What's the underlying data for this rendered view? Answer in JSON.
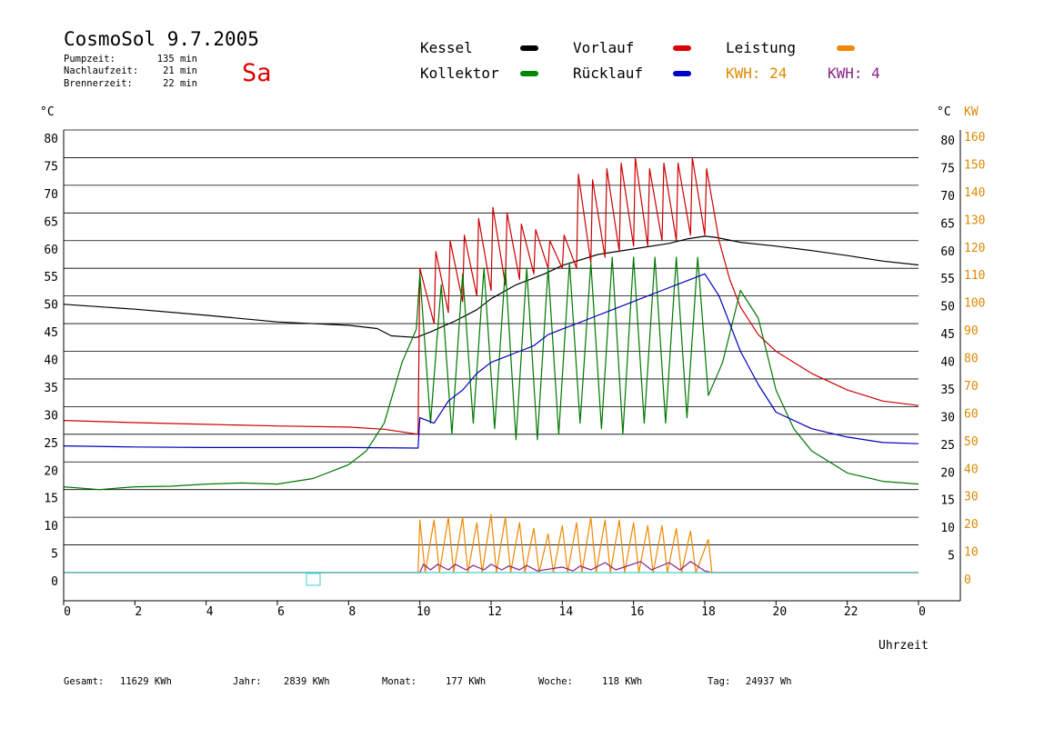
{
  "header": {
    "title": "CosmoSol 9.7.2005",
    "day": "Sa",
    "stats": [
      {
        "label": "Pumpzeit:",
        "value": "135 min"
      },
      {
        "label": "Nachlaufzeit:",
        "value": "21 min"
      },
      {
        "label": "Brennerzeit:",
        "value": "22 min"
      }
    ]
  },
  "legend": [
    {
      "label": "Kessel",
      "color": "#000000"
    },
    {
      "label": "Vorlauf",
      "color": "#dd0000"
    },
    {
      "label": "Leistung",
      "color": "#ee8800"
    },
    {
      "label": "Kollektor",
      "color": "#008800"
    },
    {
      "label": "Rücklauf",
      "color": "#0000cc"
    }
  ],
  "kwh": [
    {
      "label": "KWH: 24",
      "color": "#dd8800"
    },
    {
      "label": "KWH: 4",
      "color": "#882288"
    }
  ],
  "footer": [
    {
      "label": "Gesamt:",
      "value": "11629 KWh"
    },
    {
      "label": "Jahr:",
      "value": "2839 KWh"
    },
    {
      "label": "Monat:",
      "value": "177 KWh"
    },
    {
      "label": "Woche:",
      "value": "118 KWh"
    },
    {
      "label": "Tag:",
      "value": "24937 Wh"
    }
  ],
  "chart_data": {
    "type": "line",
    "xlabel": "Uhrzeit",
    "x_ticks": [
      "0",
      "2",
      "4",
      "6",
      "8",
      "10",
      "12",
      "14",
      "16",
      "18",
      "20",
      "22",
      "0"
    ],
    "xlim": [
      0,
      24
    ],
    "y_left_unit": "°C",
    "y_right_unit": "°C",
    "y_kw_unit": "KW",
    "y_left_ticks": [
      0,
      5,
      10,
      15,
      20,
      25,
      30,
      35,
      40,
      45,
      50,
      55,
      60,
      65,
      70,
      75,
      80
    ],
    "y_right_ticks": [
      5,
      10,
      15,
      20,
      25,
      30,
      35,
      40,
      45,
      50,
      55,
      60,
      65,
      70,
      75,
      80
    ],
    "y_kw_ticks": [
      0,
      10,
      20,
      30,
      40,
      50,
      60,
      70,
      80,
      90,
      100,
      110,
      120,
      130,
      140,
      150,
      160
    ],
    "ylim": [
      0,
      80
    ],
    "grid": true,
    "series": [
      {
        "name": "Kessel",
        "color": "#000000",
        "points": [
          [
            0,
            48.5
          ],
          [
            2,
            47.6
          ],
          [
            4,
            46.5
          ],
          [
            6,
            45.3
          ],
          [
            8,
            44.7
          ],
          [
            8.8,
            44.1
          ],
          [
            9.2,
            42.8
          ],
          [
            9.9,
            42.5
          ],
          [
            10.3,
            43.5
          ],
          [
            11,
            45.5
          ],
          [
            11.6,
            47.5
          ],
          [
            12,
            49.5
          ],
          [
            12.7,
            52
          ],
          [
            13.5,
            54
          ],
          [
            14,
            55.5
          ],
          [
            15,
            57.5
          ],
          [
            16,
            58.5
          ],
          [
            17,
            59.5
          ],
          [
            17.5,
            60.3
          ],
          [
            18,
            60.8
          ],
          [
            18.3,
            60.6
          ],
          [
            19,
            59.7
          ],
          [
            20,
            59
          ],
          [
            21,
            58.2
          ],
          [
            22,
            57.3
          ],
          [
            23,
            56.3
          ],
          [
            24,
            55.6
          ]
        ]
      },
      {
        "name": "Vorlauf",
        "color": "#cc0000",
        "points": [
          [
            0,
            27.5
          ],
          [
            2,
            27.1
          ],
          [
            4,
            26.8
          ],
          [
            6,
            26.5
          ],
          [
            8,
            26.3
          ],
          [
            9,
            25.9
          ],
          [
            9.95,
            25.0
          ],
          [
            10.0,
            55
          ],
          [
            10.4,
            45
          ],
          [
            10.45,
            58
          ],
          [
            10.8,
            47
          ],
          [
            10.85,
            60
          ],
          [
            11.2,
            49
          ],
          [
            11.25,
            61
          ],
          [
            11.6,
            50
          ],
          [
            11.65,
            64
          ],
          [
            12,
            51
          ],
          [
            12.05,
            66
          ],
          [
            12.4,
            52
          ],
          [
            12.45,
            65
          ],
          [
            12.8,
            53
          ],
          [
            12.85,
            63
          ],
          [
            13.2,
            54
          ],
          [
            13.25,
            62
          ],
          [
            13.6,
            55
          ],
          [
            13.65,
            60
          ],
          [
            14,
            55
          ],
          [
            14.05,
            61
          ],
          [
            14.4,
            55
          ],
          [
            14.45,
            72
          ],
          [
            14.8,
            56
          ],
          [
            14.85,
            71
          ],
          [
            15.2,
            57
          ],
          [
            15.25,
            73
          ],
          [
            15.6,
            58
          ],
          [
            15.65,
            74
          ],
          [
            16,
            59
          ],
          [
            16.05,
            75
          ],
          [
            16.4,
            59
          ],
          [
            16.45,
            73
          ],
          [
            16.8,
            60
          ],
          [
            16.85,
            74
          ],
          [
            17.2,
            60
          ],
          [
            17.25,
            74
          ],
          [
            17.6,
            61
          ],
          [
            17.65,
            75
          ],
          [
            18,
            61
          ],
          [
            18.05,
            73
          ],
          [
            18.4,
            60
          ],
          [
            18.7,
            53
          ],
          [
            19,
            48
          ],
          [
            19.5,
            43
          ],
          [
            20,
            40
          ],
          [
            21,
            36
          ],
          [
            22,
            33
          ],
          [
            23,
            31
          ],
          [
            24,
            30.2
          ]
        ]
      },
      {
        "name": "Kollektor",
        "color": "#007700",
        "points": [
          [
            0,
            15.5
          ],
          [
            1,
            15
          ],
          [
            2,
            15.5
          ],
          [
            3,
            15.6
          ],
          [
            4,
            16
          ],
          [
            5,
            16.2
          ],
          [
            6,
            16
          ],
          [
            7,
            17
          ],
          [
            8,
            19.5
          ],
          [
            8.5,
            22
          ],
          [
            9,
            27
          ],
          [
            9.5,
            38
          ],
          [
            9.9,
            44
          ],
          [
            10.0,
            54
          ],
          [
            10.3,
            27
          ],
          [
            10.6,
            52
          ],
          [
            10.9,
            25
          ],
          [
            11.2,
            54
          ],
          [
            11.5,
            27
          ],
          [
            11.8,
            55
          ],
          [
            12.1,
            26
          ],
          [
            12.4,
            55
          ],
          [
            12.7,
            24
          ],
          [
            13,
            55
          ],
          [
            13.3,
            24
          ],
          [
            13.6,
            55
          ],
          [
            13.9,
            25
          ],
          [
            14.2,
            56
          ],
          [
            14.5,
            27
          ],
          [
            14.8,
            56
          ],
          [
            15.1,
            26
          ],
          [
            15.4,
            57
          ],
          [
            15.7,
            25
          ],
          [
            16,
            57
          ],
          [
            16.3,
            27
          ],
          [
            16.6,
            57
          ],
          [
            16.9,
            27
          ],
          [
            17.2,
            57
          ],
          [
            17.5,
            28
          ],
          [
            17.8,
            57
          ],
          [
            18.1,
            32
          ],
          [
            18.5,
            38
          ],
          [
            19,
            51
          ],
          [
            19.5,
            46
          ],
          [
            20,
            33
          ],
          [
            20.5,
            26
          ],
          [
            21,
            22
          ],
          [
            22,
            18
          ],
          [
            23,
            16.5
          ],
          [
            24,
            16
          ]
        ]
      },
      {
        "name": "Rücklauf",
        "color": "#0000bb",
        "points": [
          [
            0,
            22.9
          ],
          [
            2,
            22.7
          ],
          [
            4,
            22.6
          ],
          [
            6,
            22.6
          ],
          [
            8,
            22.6
          ],
          [
            9.95,
            22.5
          ],
          [
            10.0,
            28
          ],
          [
            10.4,
            27
          ],
          [
            10.8,
            31
          ],
          [
            11.2,
            33
          ],
          [
            11.6,
            36
          ],
          [
            12,
            38
          ],
          [
            12.4,
            39
          ],
          [
            12.8,
            40
          ],
          [
            13.2,
            41
          ],
          [
            13.6,
            43
          ],
          [
            14,
            44
          ],
          [
            14.4,
            45
          ],
          [
            14.8,
            46
          ],
          [
            15.2,
            47
          ],
          [
            15.6,
            48
          ],
          [
            16,
            49
          ],
          [
            16.4,
            50
          ],
          [
            16.8,
            51
          ],
          [
            17.2,
            52
          ],
          [
            17.6,
            53
          ],
          [
            18,
            54
          ],
          [
            18.4,
            50
          ],
          [
            19,
            40
          ],
          [
            19.5,
            34
          ],
          [
            20,
            29
          ],
          [
            21,
            26
          ],
          [
            22,
            24.5
          ],
          [
            23,
            23.5
          ],
          [
            24,
            23.3
          ]
        ]
      },
      {
        "name": "Leistung",
        "color": "#ee8800",
        "points": [
          [
            0,
            0
          ],
          [
            9.95,
            0
          ],
          [
            10.0,
            9.5
          ],
          [
            10.15,
            0
          ],
          [
            10.4,
            9.5
          ],
          [
            10.55,
            0
          ],
          [
            10.8,
            10
          ],
          [
            10.95,
            0
          ],
          [
            11.2,
            10
          ],
          [
            11.35,
            0
          ],
          [
            11.6,
            9
          ],
          [
            11.75,
            0
          ],
          [
            12,
            10.5
          ],
          [
            12.15,
            0
          ],
          [
            12.4,
            10
          ],
          [
            12.55,
            0
          ],
          [
            12.8,
            9
          ],
          [
            12.95,
            0
          ],
          [
            13.2,
            8
          ],
          [
            13.35,
            0
          ],
          [
            13.6,
            7
          ],
          [
            13.75,
            0
          ],
          [
            14,
            8.5
          ],
          [
            14.15,
            0
          ],
          [
            14.4,
            9
          ],
          [
            14.55,
            0
          ],
          [
            14.8,
            10
          ],
          [
            14.95,
            0
          ],
          [
            15.2,
            9.5
          ],
          [
            15.35,
            0
          ],
          [
            15.6,
            9.5
          ],
          [
            15.75,
            0
          ],
          [
            16,
            9
          ],
          [
            16.15,
            0
          ],
          [
            16.4,
            8.5
          ],
          [
            16.55,
            0
          ],
          [
            16.8,
            8.5
          ],
          [
            16.95,
            0
          ],
          [
            17.2,
            8
          ],
          [
            17.35,
            0
          ],
          [
            17.6,
            7.5
          ],
          [
            17.75,
            0
          ],
          [
            18.1,
            6
          ],
          [
            18.2,
            0
          ],
          [
            24,
            0
          ]
        ]
      },
      {
        "name": "KWH4",
        "color": "#882288",
        "points": [
          [
            0,
            0
          ],
          [
            10,
            0
          ],
          [
            10.1,
            1.5
          ],
          [
            10.3,
            0.5
          ],
          [
            10.5,
            1.5
          ],
          [
            10.8,
            0.5
          ],
          [
            11.0,
            1.5
          ],
          [
            11.3,
            0.5
          ],
          [
            11.5,
            1.3
          ],
          [
            11.8,
            0.5
          ],
          [
            12.0,
            1.5
          ],
          [
            12.3,
            0.5
          ],
          [
            12.5,
            1.2
          ],
          [
            12.8,
            0.5
          ],
          [
            13.0,
            1.3
          ],
          [
            13.3,
            0.3
          ],
          [
            14,
            1.0
          ],
          [
            14.3,
            0.3
          ],
          [
            14.5,
            1.2
          ],
          [
            14.8,
            0.5
          ],
          [
            15.2,
            1.8
          ],
          [
            15.5,
            0.5
          ],
          [
            16.2,
            2
          ],
          [
            16.5,
            0.5
          ],
          [
            17.0,
            1.8
          ],
          [
            17.3,
            0.5
          ],
          [
            17.6,
            2
          ],
          [
            18,
            0.3
          ],
          [
            18.2,
            0
          ],
          [
            24,
            0
          ]
        ]
      },
      {
        "name": "Baseline",
        "color": "#44cccc",
        "points": [
          [
            0,
            0
          ],
          [
            24,
            0
          ]
        ]
      }
    ]
  }
}
